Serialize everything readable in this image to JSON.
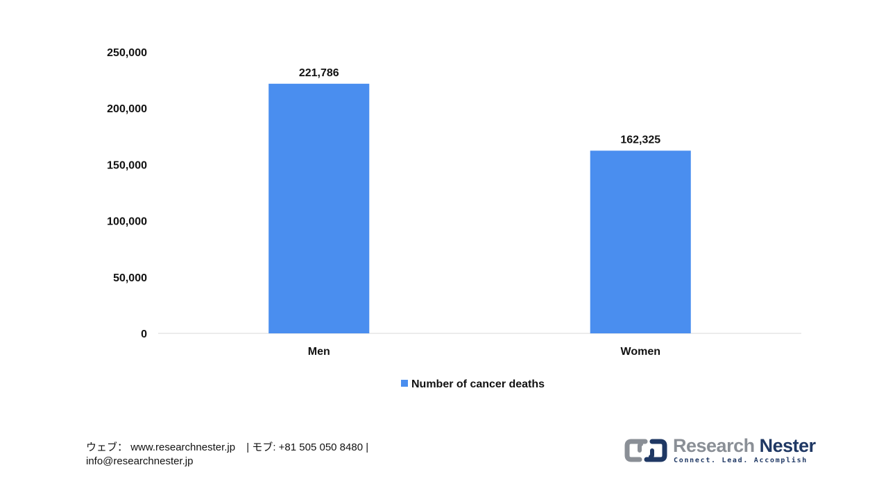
{
  "chart_data": {
    "type": "bar",
    "categories": [
      "Men",
      "Women"
    ],
    "series": [
      {
        "name": "Number of cancer deaths",
        "values": [
          221786,
          162325
        ]
      }
    ],
    "value_labels": [
      "221,786",
      "162,325"
    ],
    "y_ticks": [
      0,
      50000,
      100000,
      150000,
      200000,
      250000
    ],
    "y_tick_labels": [
      "0",
      "50,000",
      "100,000",
      "150,000",
      "200,000",
      "250,000"
    ],
    "ylim": [
      0,
      250000
    ],
    "grid": false,
    "legend_position": "bottom",
    "bar_color": "#4a8eef",
    "title": "",
    "xlabel": "",
    "ylabel": ""
  },
  "footer": {
    "web_label": "ウェブ：",
    "web_url": "www.researchnester.jp",
    "tel_label": "| モブ:",
    "tel_number": "+81 505 050 8480",
    "tel_end": "|",
    "email": "info@researchnester.jp"
  },
  "logo": {
    "name_part1": "Research",
    "name_part2": "Nester",
    "tagline": "Connect. Lead. Accomplish",
    "mark_icon": "research-nester-logo-icon",
    "color_gray": "#8a8f96",
    "color_navy": "#1f3864"
  }
}
